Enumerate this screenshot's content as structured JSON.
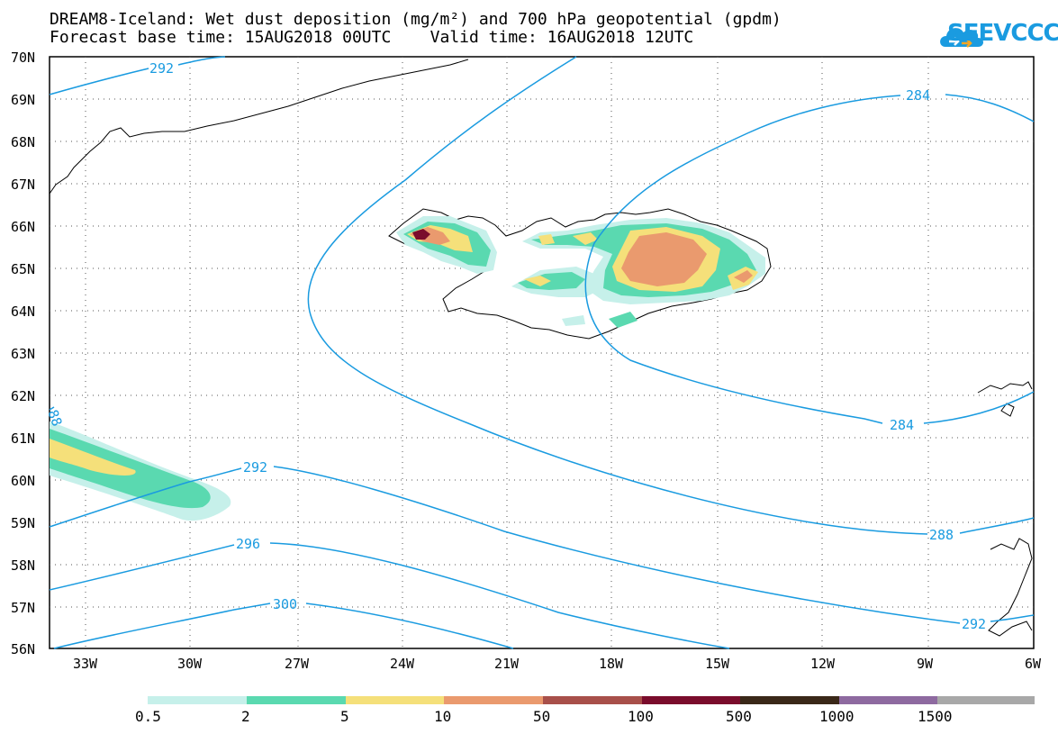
{
  "header": {
    "title_line1": "DREAM8-Iceland: Wet dust deposition (mg/m²) and 700 hPa geopotential (gpdm)",
    "title_line2": "Forecast base time: 15AUG2018 00UTC    Valid time: 16AUG2018 12UTC",
    "logo_text": "SEEVCCC"
  },
  "map": {
    "lat_labels": [
      "70N",
      "69N",
      "68N",
      "67N",
      "66N",
      "65N",
      "64N",
      "63N",
      "62N",
      "61N",
      "60N",
      "59N",
      "58N",
      "57N",
      "56N"
    ],
    "lon_labels": [
      "33W",
      "30W",
      "27W",
      "24W",
      "21W",
      "18W",
      "15W",
      "12W",
      "9W",
      "6W"
    ],
    "contour_labels": {
      "c292_top": "292",
      "c284_top": "284",
      "c284_bottom": "284",
      "c288_left": "88",
      "c288_right": "288",
      "c292_mid": "292",
      "c292_right": "292",
      "c296": "296",
      "c300": "300"
    }
  },
  "colorbar": {
    "labels": [
      "0.5",
      "2",
      "5",
      "10",
      "50",
      "100",
      "500",
      "1000",
      "1500"
    ],
    "colors": [
      "#c6f0ea",
      "#5ad9b0",
      "#f5e07a",
      "#ea9a6e",
      "#a8504a",
      "#7a0c2c",
      "#3a2818",
      "#8e6aa0",
      "#a8a8a8"
    ]
  },
  "colors": {
    "contour": "#1a9be0",
    "coast": "#000000",
    "grid": "#555555"
  }
}
